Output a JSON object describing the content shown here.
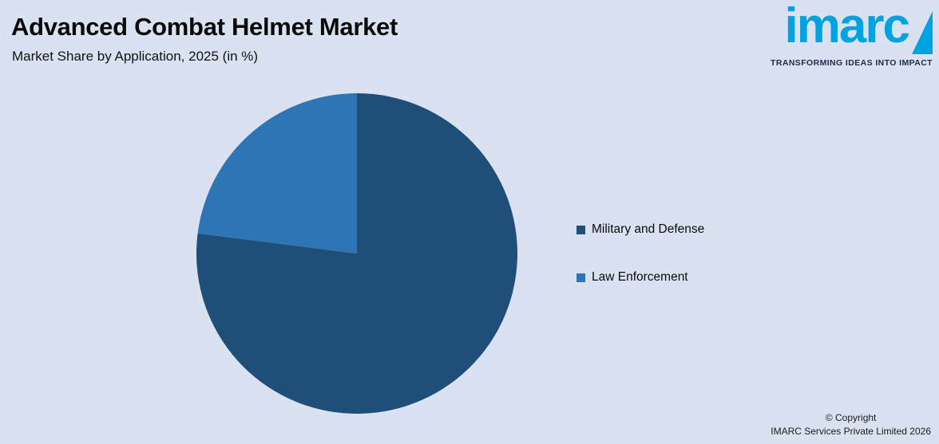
{
  "page": {
    "title": "Advanced Combat Helmet Market",
    "subtitle": "Market Share by Application, 2025 (in %)"
  },
  "logo": {
    "wordmark": "imarc",
    "tagline": "TRANSFORMING IDEAS INTO IMPACT"
  },
  "footer": {
    "copyright_line1": "© Copyright",
    "copyright_line2": "IMARC Services Private Limited 2026"
  },
  "colors": {
    "background": "#dae2f2",
    "logo_blue": "#00A3E2",
    "tagline_navy": "#1c2b4a",
    "military_and_defense": "#1F4E79",
    "law_enforcement": "#2E75B6"
  },
  "chart_data": {
    "type": "pie",
    "title": "Market Share by Application, 2025 (in %)",
    "categories": [
      "Military and Defense",
      "Law Enforcement"
    ],
    "values": [
      77,
      23
    ],
    "unit": "%",
    "colors": [
      "#1F4E79",
      "#2E75B6"
    ],
    "legend_position": "right",
    "start_angle_deg": 0,
    "direction": "clockwise",
    "data_labels": "none"
  }
}
